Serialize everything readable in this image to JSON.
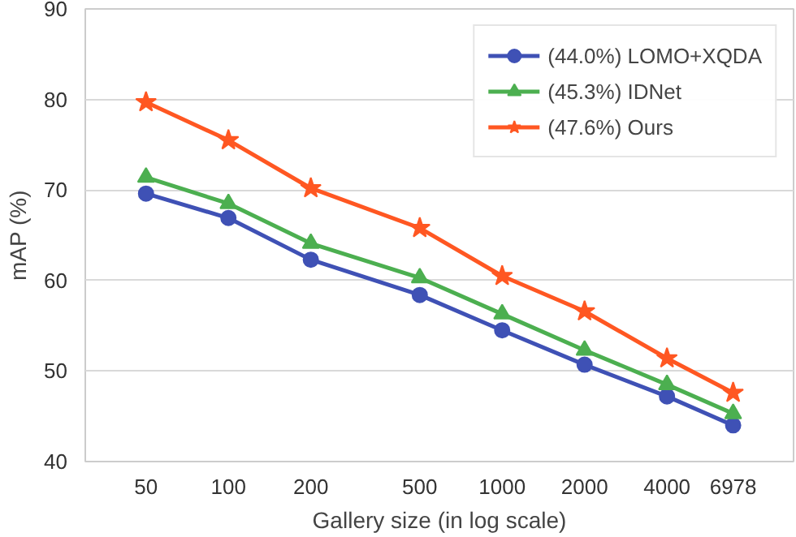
{
  "chart_data": {
    "type": "line",
    "xlabel": "Gallery size (in log scale)",
    "ylabel": "mAP (%)",
    "log": "x",
    "x": [
      50,
      100,
      200,
      500,
      1000,
      2000,
      4000,
      6978
    ],
    "xlim": [
      30,
      11600
    ],
    "xticks": [
      50,
      100,
      200,
      500,
      1000,
      2000,
      4000,
      6978
    ],
    "ylim": [
      40,
      90
    ],
    "yticks": [
      40,
      50,
      60,
      70,
      80,
      90
    ],
    "grid": "y",
    "legend": "top right",
    "series": [
      {
        "name": "(44.0%) LOMO+XQDA",
        "color": "#3f51b5",
        "marker": "circle",
        "values": [
          69.6,
          66.9,
          62.3,
          58.4,
          54.5,
          50.7,
          47.2,
          44.0
        ]
      },
      {
        "name": "(45.3%) IDNet",
        "color": "#4caf50",
        "marker": "triangle",
        "values": [
          71.4,
          68.5,
          64.1,
          60.3,
          56.3,
          52.3,
          48.5,
          45.3
        ]
      },
      {
        "name": "(47.6%) Ours",
        "color": "#ff5722",
        "marker": "star",
        "values": [
          79.7,
          75.5,
          70.2,
          65.8,
          60.5,
          56.6,
          51.4,
          47.6
        ]
      }
    ]
  }
}
